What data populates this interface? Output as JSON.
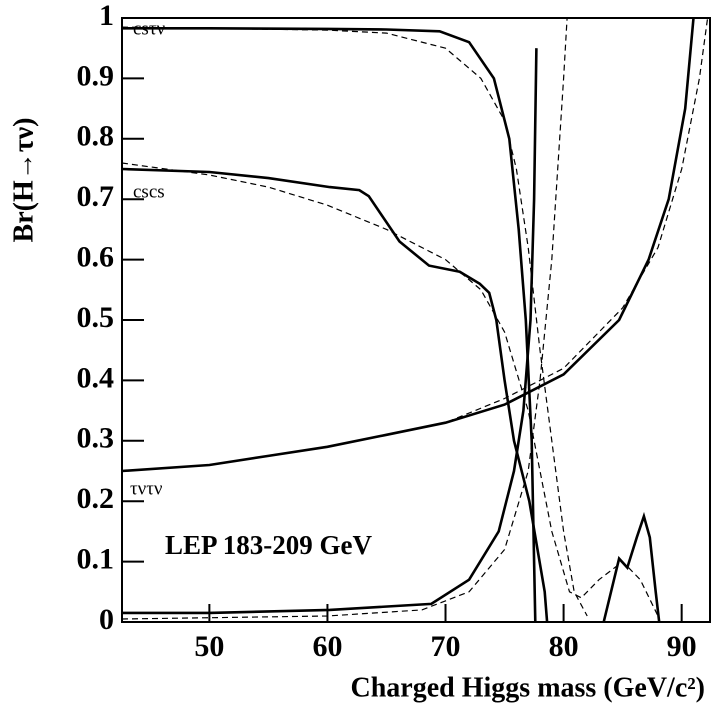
{
  "chart_data": {
    "type": "line",
    "xlabel": "Charged Higgs mass (GeV/c²)",
    "ylabel": "Br(H→τν)",
    "annotations": [
      "csτν",
      "cscs",
      "τντν",
      "LEP 183-209 GeV"
    ],
    "xlim": [
      42.6,
      92.4
    ],
    "ylim": [
      0,
      1
    ],
    "xticks": [
      50,
      60,
      70,
      80,
      90
    ],
    "yticks": [
      0,
      0.1,
      0.2,
      0.3,
      0.4,
      0.5,
      0.6,
      0.7,
      0.8,
      0.9,
      1
    ],
    "series": [
      {
        "style": "solid",
        "color": "#000000",
        "x": [
          42.6,
          50,
          60,
          65,
          69.5,
          72,
          74.1,
          75.4,
          76.2,
          76.8,
          77.3,
          77.5,
          77.6
        ],
        "values": [
          0.983,
          0.983,
          0.982,
          0.981,
          0.978,
          0.96,
          0.9,
          0.8,
          0.65,
          0.5,
          0.3,
          0.1,
          0
        ]
      },
      {
        "style": "solid",
        "color": "#000000",
        "x": [
          42.6,
          50,
          60.2,
          68.8,
          72,
          74.5,
          75.8,
          76.6,
          77.2,
          77.5,
          77.7
        ],
        "values": [
          0.015,
          0.015,
          0.02,
          0.03,
          0.07,
          0.15,
          0.25,
          0.35,
          0.5,
          0.7,
          0.95
        ]
      },
      {
        "style": "solid",
        "color": "#000000",
        "x": [
          42.6,
          50,
          55,
          60.2,
          62.7,
          63.5,
          66.1,
          68.6,
          71.2,
          72.9,
          73.7,
          74.3,
          75,
          75.8,
          77.1,
          78.4,
          78.6
        ],
        "values": [
          0.75,
          0.745,
          0.735,
          0.72,
          0.715,
          0.705,
          0.63,
          0.59,
          0.58,
          0.56,
          0.545,
          0.5,
          0.4,
          0.3,
          0.2,
          0.05,
          0
        ]
      },
      {
        "style": "solid",
        "color": "#000000",
        "x": [
          83.4,
          84.7,
          85.4,
          86.2,
          86.8,
          87.3,
          87.8,
          88.1
        ],
        "values": [
          0,
          0.105,
          0.09,
          0.14,
          0.175,
          0.14,
          0.05,
          0
        ]
      },
      {
        "style": "solid",
        "color": "#000000",
        "x": [
          42.6,
          50,
          55,
          60,
          65,
          70,
          75,
          80,
          84.7,
          87.2,
          88.9,
          90.3,
          91
        ],
        "values": [
          0.25,
          0.26,
          0.275,
          0.29,
          0.31,
          0.33,
          0.36,
          0.41,
          0.5,
          0.6,
          0.7,
          0.85,
          1
        ]
      },
      {
        "style": "dashed",
        "color": "#000000",
        "x": [
          42.6,
          60,
          65,
          70,
          73,
          75,
          76,
          77,
          78,
          79,
          80,
          80.9,
          82
        ],
        "values": [
          0.985,
          0.98,
          0.975,
          0.95,
          0.9,
          0.83,
          0.75,
          0.62,
          0.45,
          0.3,
          0.15,
          0.05,
          0.01
        ]
      },
      {
        "style": "dashed",
        "color": "#000000",
        "x": [
          42.6,
          60,
          68,
          72,
          75,
          77,
          78,
          79,
          79.5,
          80,
          80.3
        ],
        "values": [
          0.005,
          0.01,
          0.02,
          0.05,
          0.12,
          0.25,
          0.4,
          0.6,
          0.75,
          0.9,
          1
        ]
      },
      {
        "style": "dashed",
        "color": "#000000",
        "x": [
          42.6,
          50,
          55,
          60,
          65,
          70,
          73,
          75,
          77,
          79,
          80.5,
          81.5,
          83,
          85,
          86.5,
          88
        ],
        "values": [
          0.76,
          0.74,
          0.72,
          0.69,
          0.65,
          0.6,
          0.55,
          0.48,
          0.35,
          0.15,
          0.05,
          0.04,
          0.07,
          0.1,
          0.07,
          0.01
        ]
      },
      {
        "style": "dashed",
        "color": "#000000",
        "x": [
          42.6,
          50,
          60,
          70,
          75,
          80,
          85,
          88,
          90,
          91.5,
          92.2
        ],
        "values": [
          0.25,
          0.26,
          0.29,
          0.33,
          0.37,
          0.42,
          0.52,
          0.62,
          0.75,
          0.9,
          1
        ]
      }
    ]
  }
}
